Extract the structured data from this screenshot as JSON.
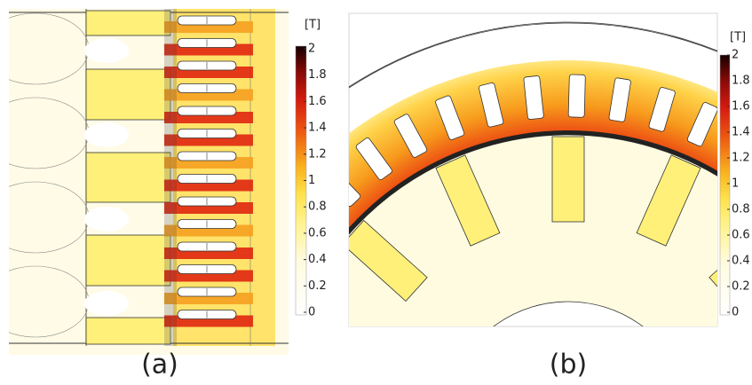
{
  "panels": [
    {
      "label": "(a)",
      "colorbar": {
        "unit": "[T]",
        "lim": [
          0,
          2
        ],
        "ticks": [
          0,
          0.2,
          0.4,
          0.6,
          0.8,
          1,
          1.2,
          1.4,
          1.6,
          1.8,
          2
        ]
      }
    },
    {
      "label": "(b)",
      "colorbar": {
        "unit": "[T]",
        "lim": [
          0,
          2
        ],
        "ticks": [
          0,
          0.2,
          0.4,
          0.6,
          0.8,
          1,
          1.2,
          1.4,
          1.6,
          1.8,
          2
        ]
      }
    }
  ]
}
